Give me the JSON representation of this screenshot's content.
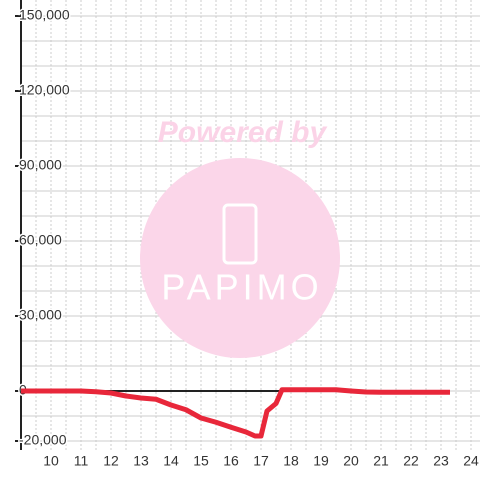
{
  "chart_data": {
    "type": "line",
    "annotations": [
      "Powered by",
      "PAPIMO"
    ],
    "x": [
      9,
      10,
      11,
      11.5,
      12,
      12.5,
      13,
      13.5,
      14,
      14.5,
      15,
      15.5,
      16,
      16.5,
      16.8,
      17,
      17.2,
      17.5,
      17.7,
      18,
      19,
      19.5,
      20,
      20.5,
      21,
      22,
      23.3
    ],
    "series": [
      {
        "color": "#e8273a",
        "values": [
          0,
          0,
          0,
          -300,
          -800,
          -2000,
          -2800,
          -3300,
          -5600,
          -7500,
          -10800,
          -12500,
          -14500,
          -16400,
          -18000,
          -18000,
          -8000,
          -5000,
          500,
          500,
          500,
          500,
          0,
          -400,
          -500,
          -500,
          -500
        ]
      }
    ],
    "xlim": [
      9,
      24.3
    ],
    "xticks": [
      10,
      11,
      12,
      13,
      14,
      15,
      16,
      17,
      18,
      19,
      20,
      21,
      22,
      23,
      24
    ],
    "minor_xticks": [
      9.5,
      10.5,
      11.5,
      12.5,
      13.5,
      14.5,
      15.5,
      16.5,
      17.5,
      18.5,
      19.5,
      20.5,
      21.5,
      22.5,
      23.5
    ],
    "ylim": [
      -20000,
      150000
    ],
    "yticks": [
      {
        "value": -20000,
        "label": "-20,000"
      },
      0,
      {
        "value": 30000,
        "label": "30,000"
      },
      {
        "value": 60000,
        "label": "60,000"
      },
      {
        "value": 90000,
        "label": "90,000"
      },
      {
        "value": 120000,
        "label": "120,000"
      },
      {
        "value": 150000,
        "label": "150,000"
      }
    ],
    "minor_yticks": [
      -10000,
      10000,
      20000,
      40000,
      50000,
      70000,
      80000,
      100000,
      110000,
      130000,
      140000
    ],
    "grid": true
  }
}
